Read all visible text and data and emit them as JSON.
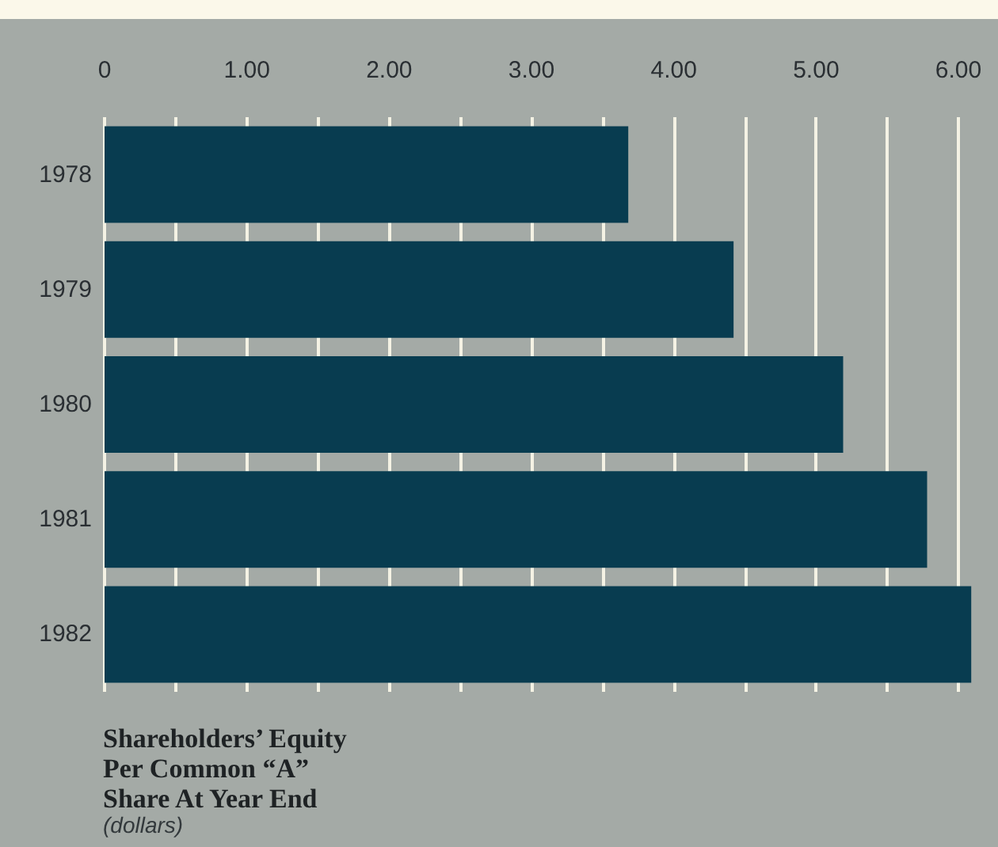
{
  "chart_data": {
    "type": "bar",
    "orientation": "horizontal",
    "title": "Shareholders’ Equity Per Common “A” Share At Year End",
    "subtitle": "(dollars)",
    "categories": [
      "1978",
      "1979",
      "1980",
      "1981",
      "1982"
    ],
    "values": [
      3.68,
      4.42,
      5.19,
      5.78,
      6.09
    ],
    "color": "#083c50",
    "xlim": [
      0,
      6.1
    ],
    "xticks": [
      0,
      {
        "value": 0.5,
        "label": null
      },
      {
        "value": 1,
        "label": "1.00"
      },
      {
        "value": 1.5,
        "label": null
      },
      {
        "value": 2,
        "label": "2.00"
      },
      {
        "value": 2.5,
        "label": null
      },
      {
        "value": 3,
        "label": "3.00"
      },
      {
        "value": 3.5,
        "label": null
      },
      {
        "value": 4,
        "label": "4.00"
      },
      {
        "value": 4.5,
        "label": null
      },
      {
        "value": 5,
        "label": "5.00"
      },
      {
        "value": 5.5,
        "label": null
      },
      {
        "value": 6,
        "label": "6.00"
      }
    ],
    "grid": "x"
  }
}
